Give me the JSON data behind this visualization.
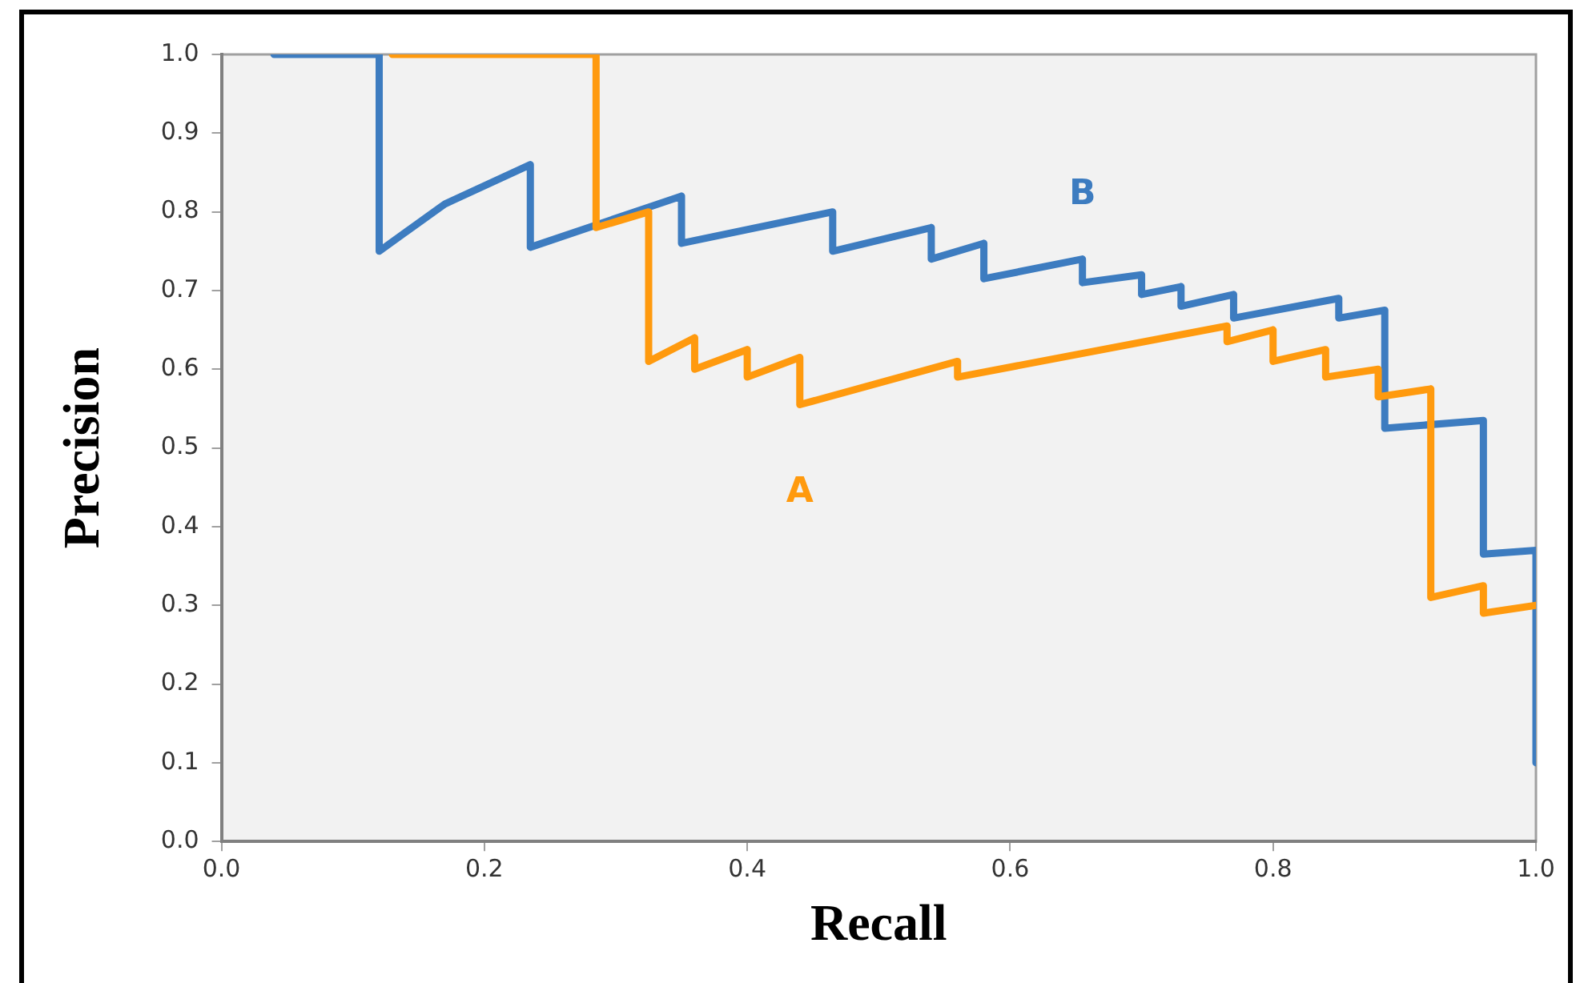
{
  "chart_data": {
    "type": "line",
    "xlabel": "Recall",
    "ylabel": "Precision",
    "xlim": [
      0,
      1
    ],
    "ylim": [
      0,
      1
    ],
    "xticks": [
      {
        "value": 0,
        "label": "0.0"
      },
      0.2,
      0.4,
      0.6,
      0.8,
      {
        "value": 1,
        "label": "1.0"
      }
    ],
    "yticks": [
      {
        "value": 0,
        "label": "0.0"
      },
      0.1,
      0.2,
      0.3,
      0.4,
      0.5,
      0.6,
      0.7,
      0.8,
      0.9,
      {
        "value": 1,
        "label": "1.0"
      }
    ],
    "marker": "none",
    "legend": false,
    "series": [
      {
        "name": "A",
        "color": "#ff9a0e",
        "x": [
          0.13,
          0.285,
          0.285,
          0.325,
          0.325,
          0.36,
          0.36,
          0.4,
          0.4,
          0.44,
          0.44,
          0.56,
          0.56,
          0.765,
          0.765,
          0.8,
          0.8,
          0.84,
          0.84,
          0.88,
          0.88,
          0.92,
          0.92,
          0.96,
          0.96,
          1.0
        ],
        "values": [
          1.0,
          1.0,
          0.78,
          0.8,
          0.61,
          0.64,
          0.6,
          0.625,
          0.59,
          0.615,
          0.555,
          0.61,
          0.59,
          0.655,
          0.635,
          0.65,
          0.61,
          0.625,
          0.59,
          0.6,
          0.565,
          0.575,
          0.31,
          0.325,
          0.29,
          0.3
        ]
      },
      {
        "name": "B",
        "color": "#3d7cc0",
        "x": [
          0.04,
          0.12,
          0.12,
          0.17,
          0.235,
          0.235,
          0.35,
          0.35,
          0.465,
          0.465,
          0.54,
          0.54,
          0.58,
          0.58,
          0.655,
          0.655,
          0.7,
          0.7,
          0.73,
          0.73,
          0.77,
          0.77,
          0.85,
          0.85,
          0.885,
          0.885,
          0.96,
          0.96,
          1.0,
          1.0
        ],
        "values": [
          1.0,
          1.0,
          0.75,
          0.81,
          0.86,
          0.755,
          0.82,
          0.76,
          0.8,
          0.75,
          0.78,
          0.74,
          0.76,
          0.715,
          0.74,
          0.71,
          0.72,
          0.695,
          0.705,
          0.68,
          0.695,
          0.665,
          0.69,
          0.665,
          0.675,
          0.525,
          0.535,
          0.365,
          0.37,
          0.1
        ]
      }
    ]
  }
}
